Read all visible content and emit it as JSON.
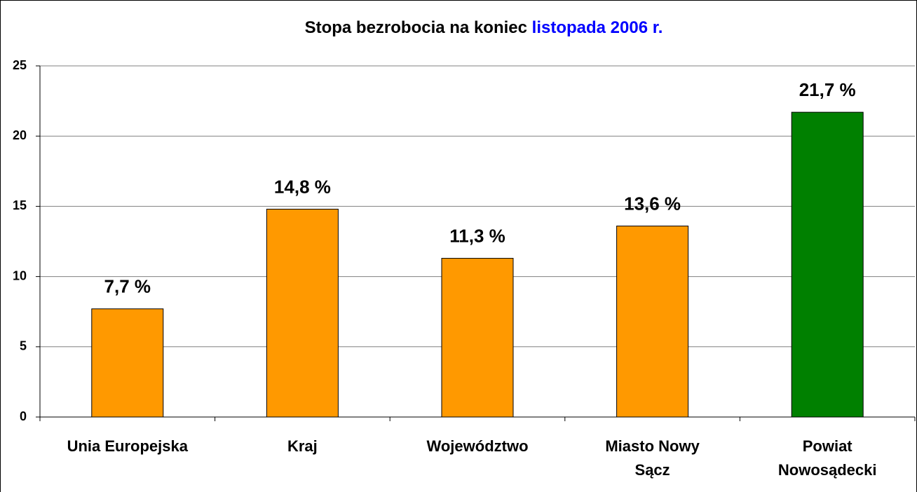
{
  "chart_data": {
    "type": "bar",
    "title": [
      "Stopa bezrobocia na koniec",
      "listopada 2006 r."
    ],
    "title_colors": [
      "#000000",
      "#0000ff"
    ],
    "categories": [
      "Unia Europejska",
      "Kraj",
      "Województwo",
      "Miasto Nowy\nSącz",
      "Powiat\nNowosądecki"
    ],
    "values": [
      7.7,
      14.8,
      11.3,
      13.6,
      21.7
    ],
    "value_labels": [
      "7,7 %",
      "14,8 %",
      "11,3 %",
      "13,6 %",
      "21,7 %"
    ],
    "colors": [
      "#ff9900",
      "#ff9900",
      "#ff9900",
      "#ff9900",
      "#008000"
    ],
    "ylim": [
      0,
      25
    ],
    "yticks": [
      0,
      5,
      10,
      15,
      20,
      25
    ],
    "grid": true
  }
}
